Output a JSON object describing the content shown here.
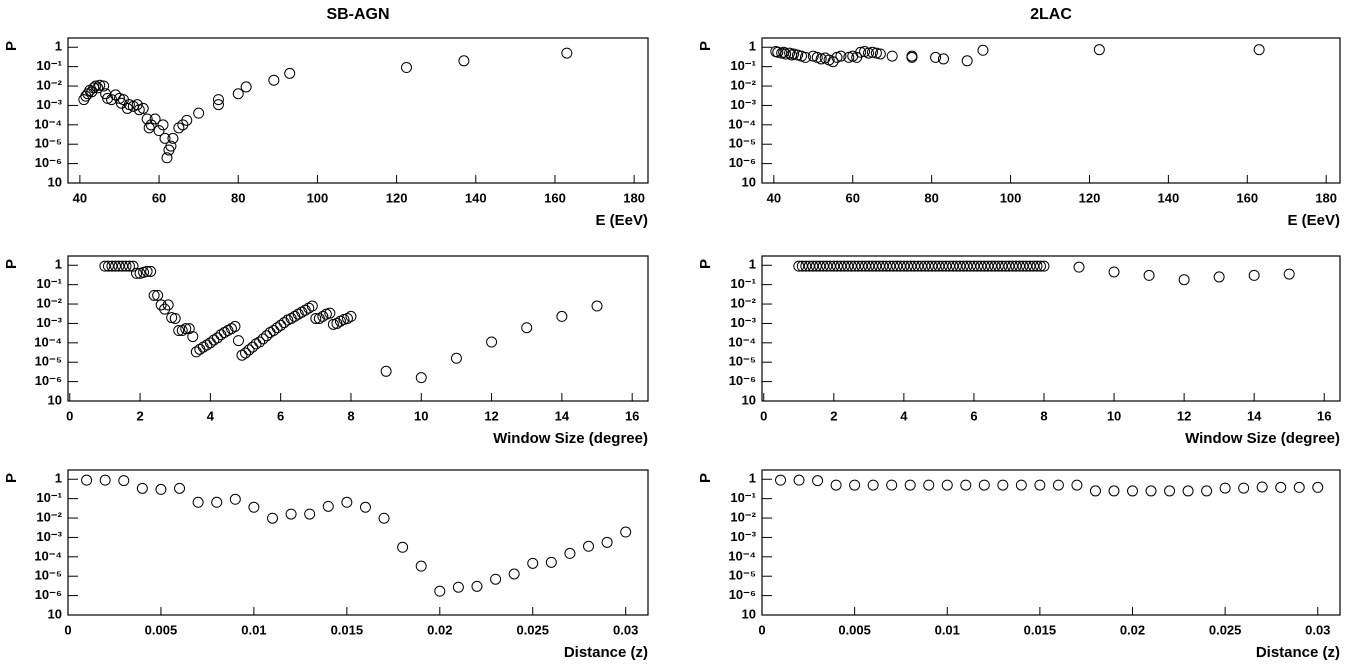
{
  "chart_data": [
    {
      "type": "scatter",
      "title": "SB-AGN",
      "x_label": "E (EeV)",
      "y_label": "P",
      "log_y": true,
      "color": "#000000",
      "xlim": [
        37,
        183.5
      ],
      "xticks": [
        40,
        60,
        80,
        100,
        120,
        140,
        160,
        180
      ],
      "ylim": [
        1e-07,
        3
      ],
      "yticks": [
        1,
        {
          "value": 0.1,
          "label": "10⁻¹"
        },
        {
          "value": 0.01,
          "label": "10⁻²"
        },
        {
          "value": 0.001,
          "label": "10⁻³"
        },
        {
          "value": 0.0001,
          "label": "10⁻⁴"
        },
        {
          "value": 1e-05,
          "label": "10⁻⁵"
        },
        {
          "value": 1e-06,
          "label": "10⁻⁶"
        },
        {
          "value": 1e-07,
          "label": "10"
        }
      ],
      "x": [
        41,
        41.5,
        42,
        42.5,
        43,
        43.5,
        44,
        44.5,
        45,
        46,
        46.5,
        47,
        48,
        49,
        50,
        50.5,
        51,
        52,
        52.5,
        53.5,
        54.5,
        55,
        56,
        57,
        57.5,
        58,
        59,
        60,
        61,
        61.5,
        62,
        62.5,
        63,
        63.5,
        65,
        66,
        67,
        70,
        75,
        75,
        80,
        82,
        89,
        93,
        122.5,
        137,
        163
      ],
      "values": [
        0.002,
        0.003,
        0.004,
        0.006,
        0.005,
        0.008,
        0.01,
        0.008,
        0.011,
        0.01,
        0.004,
        0.0023,
        0.002,
        0.0035,
        0.0023,
        0.0013,
        0.002,
        0.0007,
        0.0011,
        0.0009,
        0.0011,
        0.0006,
        0.0007,
        0.0002,
        7e-05,
        0.0001,
        0.0002,
        5e-05,
        0.0001,
        2e-05,
        2e-06,
        5e-06,
        8e-06,
        2e-05,
        7e-05,
        0.0001,
        0.00017,
        0.0004,
        0.002,
        0.0011,
        0.004,
        0.009,
        0.02,
        0.045,
        0.09,
        0.2,
        0.5
      ]
    },
    {
      "type": "scatter",
      "title": "2LAC",
      "x_label": "E (EeV)",
      "y_label": "P",
      "log_y": true,
      "color": "#000000",
      "xlim": [
        37,
        183.5
      ],
      "xticks": [
        40,
        60,
        80,
        100,
        120,
        140,
        160,
        180
      ],
      "ylim": [
        1e-07,
        3
      ],
      "yticks": [
        1,
        {
          "value": 0.1,
          "label": "10⁻¹"
        },
        {
          "value": 0.01,
          "label": "10⁻²"
        },
        {
          "value": 0.001,
          "label": "10⁻³"
        },
        {
          "value": 0.0001,
          "label": "10⁻⁴"
        },
        {
          "value": 1e-05,
          "label": "10⁻⁵"
        },
        {
          "value": 1e-06,
          "label": "10⁻⁶"
        },
        {
          "value": 1e-07,
          "label": "10"
        }
      ],
      "x": [
        40.5,
        41,
        42,
        42.5,
        43,
        44,
        44.5,
        45,
        46,
        47,
        48,
        50,
        51,
        52,
        53,
        54,
        55,
        56,
        57,
        59,
        60,
        61,
        62,
        63,
        64,
        65,
        66,
        67,
        70,
        75,
        75,
        81,
        83,
        89,
        93,
        122.5,
        163
      ],
      "values": [
        0.6,
        0.55,
        0.5,
        0.55,
        0.45,
        0.5,
        0.4,
        0.45,
        0.4,
        0.35,
        0.3,
        0.35,
        0.3,
        0.25,
        0.28,
        0.22,
        0.18,
        0.3,
        0.35,
        0.3,
        0.35,
        0.3,
        0.55,
        0.6,
        0.5,
        0.55,
        0.5,
        0.45,
        0.35,
        0.35,
        0.3,
        0.3,
        0.25,
        0.2,
        0.7,
        0.75,
        0.75
      ]
    },
    {
      "type": "scatter",
      "x_label": "Window Size (degree)",
      "y_label": "P",
      "log_y": true,
      "color": "#000000",
      "xlim": [
        -0.05,
        16.45
      ],
      "xticks": [
        0,
        2,
        4,
        6,
        8,
        10,
        12,
        14,
        16
      ],
      "ylim": [
        1e-07,
        3
      ],
      "yticks": [
        1,
        {
          "value": 0.1,
          "label": "10⁻¹"
        },
        {
          "value": 0.01,
          "label": "10⁻²"
        },
        {
          "value": 0.001,
          "label": "10⁻³"
        },
        {
          "value": 0.0001,
          "label": "10⁻⁴"
        },
        {
          "value": 1e-05,
          "label": "10⁻⁵"
        },
        {
          "value": 1e-06,
          "label": "10⁻⁶"
        },
        {
          "value": 1e-07,
          "label": "10"
        }
      ],
      "x": [
        1,
        1.1,
        1.2,
        1.3,
        1.4,
        1.5,
        1.6,
        1.7,
        1.8,
        1.9,
        2,
        2.1,
        2.2,
        2.3,
        2.4,
        2.5,
        2.6,
        2.7,
        2.8,
        2.9,
        3,
        3.1,
        3.2,
        3.3,
        3.4,
        3.5,
        3.6,
        3.7,
        3.8,
        3.9,
        4,
        4.1,
        4.2,
        4.3,
        4.4,
        4.5,
        4.6,
        4.7,
        4.8,
        4.9,
        5,
        5.1,
        5.2,
        5.3,
        5.4,
        5.5,
        5.6,
        5.7,
        5.8,
        5.9,
        6,
        6.1,
        6.2,
        6.3,
        6.4,
        6.5,
        6.6,
        6.7,
        6.8,
        6.9,
        7,
        7.1,
        7.2,
        7.3,
        7.4,
        7.5,
        7.6,
        7.7,
        7.8,
        7.9,
        8,
        9,
        10,
        11,
        12,
        13,
        14,
        15
      ],
      "values": [
        0.9,
        0.9,
        0.9,
        0.9,
        0.9,
        0.9,
        0.9,
        0.9,
        0.9,
        0.38,
        0.38,
        0.43,
        0.48,
        0.48,
        0.028,
        0.028,
        0.009,
        0.0055,
        0.009,
        0.002,
        0.0018,
        0.00043,
        0.00043,
        0.00054,
        0.00054,
        0.00021,
        3.4e-05,
        4.6e-05,
        6e-05,
        7.7e-05,
        0.0001,
        0.00014,
        0.00018,
        0.00026,
        0.00034,
        0.00043,
        0.00054,
        0.0007,
        0.00013,
        2.3e-05,
        3e-05,
        4.3e-05,
        6e-05,
        8.8e-05,
        0.00011,
        0.00016,
        0.00023,
        0.00034,
        0.00043,
        0.0006,
        0.0008,
        0.0011,
        0.0015,
        0.0018,
        0.0023,
        0.003,
        0.0038,
        0.0048,
        0.0062,
        0.0079,
        0.0018,
        0.0018,
        0.0023,
        0.003,
        0.0034,
        0.0009,
        0.001,
        0.0013,
        0.0016,
        0.0018,
        0.0023,
        3.4e-06,
        1.6e-06,
        1.6e-05,
        0.00011,
        0.0006,
        0.0023,
        0.0079
      ]
    },
    {
      "type": "scatter",
      "x_label": "Window Size (degree)",
      "y_label": "P",
      "log_y": true,
      "color": "#000000",
      "xlim": [
        -0.05,
        16.45
      ],
      "xticks": [
        0,
        2,
        4,
        6,
        8,
        10,
        12,
        14,
        16
      ],
      "ylim": [
        1e-07,
        3
      ],
      "yticks": [
        1,
        {
          "value": 0.1,
          "label": "10⁻¹"
        },
        {
          "value": 0.01,
          "label": "10⁻²"
        },
        {
          "value": 0.001,
          "label": "10⁻³"
        },
        {
          "value": 0.0001,
          "label": "10⁻⁴"
        },
        {
          "value": 1e-05,
          "label": "10⁻⁵"
        },
        {
          "value": 1e-06,
          "label": "10⁻⁶"
        },
        {
          "value": 1e-07,
          "label": "10"
        }
      ],
      "x": [
        1,
        1.1,
        1.2,
        1.3,
        1.4,
        1.5,
        1.6,
        1.7,
        1.8,
        1.9,
        2,
        2.1,
        2.2,
        2.3,
        2.4,
        2.5,
        2.6,
        2.7,
        2.8,
        2.9,
        3,
        3.1,
        3.2,
        3.3,
        3.4,
        3.5,
        3.6,
        3.7,
        3.8,
        3.9,
        4,
        4.1,
        4.2,
        4.3,
        4.4,
        4.5,
        4.6,
        4.7,
        4.8,
        4.9,
        5,
        5.1,
        5.2,
        5.3,
        5.4,
        5.5,
        5.6,
        5.7,
        5.8,
        5.9,
        6,
        6.1,
        6.2,
        6.3,
        6.4,
        6.5,
        6.6,
        6.7,
        6.8,
        6.9,
        7,
        7.1,
        7.2,
        7.3,
        7.4,
        7.5,
        7.6,
        7.7,
        7.8,
        7.9,
        8,
        9,
        10,
        11,
        12,
        13,
        14,
        15
      ],
      "values": [
        0.9,
        0.9,
        0.9,
        0.9,
        0.9,
        0.9,
        0.9,
        0.9,
        0.9,
        0.9,
        0.9,
        0.9,
        0.9,
        0.9,
        0.9,
        0.9,
        0.9,
        0.9,
        0.9,
        0.9,
        0.9,
        0.9,
        0.9,
        0.9,
        0.9,
        0.9,
        0.9,
        0.9,
        0.9,
        0.9,
        0.9,
        0.9,
        0.9,
        0.9,
        0.9,
        0.9,
        0.9,
        0.9,
        0.9,
        0.9,
        0.9,
        0.9,
        0.9,
        0.9,
        0.9,
        0.9,
        0.9,
        0.9,
        0.9,
        0.9,
        0.9,
        0.9,
        0.9,
        0.9,
        0.9,
        0.9,
        0.9,
        0.9,
        0.9,
        0.9,
        0.9,
        0.9,
        0.9,
        0.9,
        0.9,
        0.9,
        0.9,
        0.9,
        0.9,
        0.9,
        0.9,
        0.8,
        0.45,
        0.3,
        0.18,
        0.25,
        0.3,
        0.35
      ]
    },
    {
      "type": "scatter",
      "x_label": "Distance (z)",
      "y_label": "P",
      "log_y": true,
      "color": "#000000",
      "xlim": [
        0,
        0.0312
      ],
      "xticks": [
        0,
        0.005,
        0.01,
        0.015,
        0.02,
        0.025,
        0.03
      ],
      "ylim": [
        1e-07,
        3
      ],
      "yticks": [
        1,
        {
          "value": 0.1,
          "label": "10⁻¹"
        },
        {
          "value": 0.01,
          "label": "10⁻²"
        },
        {
          "value": 0.001,
          "label": "10⁻³"
        },
        {
          "value": 0.0001,
          "label": "10⁻⁴"
        },
        {
          "value": 1e-05,
          "label": "10⁻⁵"
        },
        {
          "value": 1e-06,
          "label": "10⁻⁶"
        },
        {
          "value": 1e-07,
          "label": "10"
        }
      ],
      "x": [
        0.001,
        0.002,
        0.003,
        0.004,
        0.005,
        0.006,
        0.007,
        0.008,
        0.009,
        0.01,
        0.011,
        0.012,
        0.013,
        0.014,
        0.015,
        0.016,
        0.017,
        0.018,
        0.019,
        0.02,
        0.021,
        0.022,
        0.023,
        0.024,
        0.025,
        0.026,
        0.027,
        0.028,
        0.029,
        0.03
      ],
      "values": [
        0.9,
        0.9,
        0.85,
        0.34,
        0.3,
        0.34,
        0.065,
        0.065,
        0.093,
        0.036,
        0.0098,
        0.016,
        0.016,
        0.04,
        0.065,
        0.036,
        0.0098,
        0.00031,
        3.3e-05,
        1.7e-06,
        2.7e-06,
        3e-06,
        7e-06,
        1.3e-05,
        4.6e-05,
        5.2e-05,
        0.00015,
        0.00035,
        0.00056,
        0.0019
      ]
    },
    {
      "type": "scatter",
      "x_label": "Distance (z)",
      "y_label": "P",
      "log_y": true,
      "color": "#000000",
      "xlim": [
        0,
        0.0312
      ],
      "xticks": [
        0,
        0.005,
        0.01,
        0.015,
        0.02,
        0.025,
        0.03
      ],
      "ylim": [
        1e-07,
        3
      ],
      "yticks": [
        1,
        {
          "value": 0.1,
          "label": "10⁻¹"
        },
        {
          "value": 0.01,
          "label": "10⁻²"
        },
        {
          "value": 0.001,
          "label": "10⁻³"
        },
        {
          "value": 0.0001,
          "label": "10⁻⁴"
        },
        {
          "value": 1e-05,
          "label": "10⁻⁵"
        },
        {
          "value": 1e-06,
          "label": "10⁻⁶"
        },
        {
          "value": 1e-07,
          "label": "10"
        }
      ],
      "x": [
        0.001,
        0.002,
        0.003,
        0.004,
        0.005,
        0.006,
        0.007,
        0.008,
        0.009,
        0.01,
        0.011,
        0.012,
        0.013,
        0.014,
        0.015,
        0.016,
        0.017,
        0.018,
        0.019,
        0.02,
        0.021,
        0.022,
        0.023,
        0.024,
        0.025,
        0.026,
        0.027,
        0.028,
        0.029,
        0.03
      ],
      "values": [
        0.9,
        0.9,
        0.85,
        0.5,
        0.5,
        0.5,
        0.5,
        0.5,
        0.5,
        0.5,
        0.5,
        0.5,
        0.5,
        0.5,
        0.5,
        0.5,
        0.5,
        0.25,
        0.25,
        0.25,
        0.25,
        0.25,
        0.25,
        0.25,
        0.35,
        0.35,
        0.4,
        0.38,
        0.38,
        0.38
      ]
    }
  ]
}
